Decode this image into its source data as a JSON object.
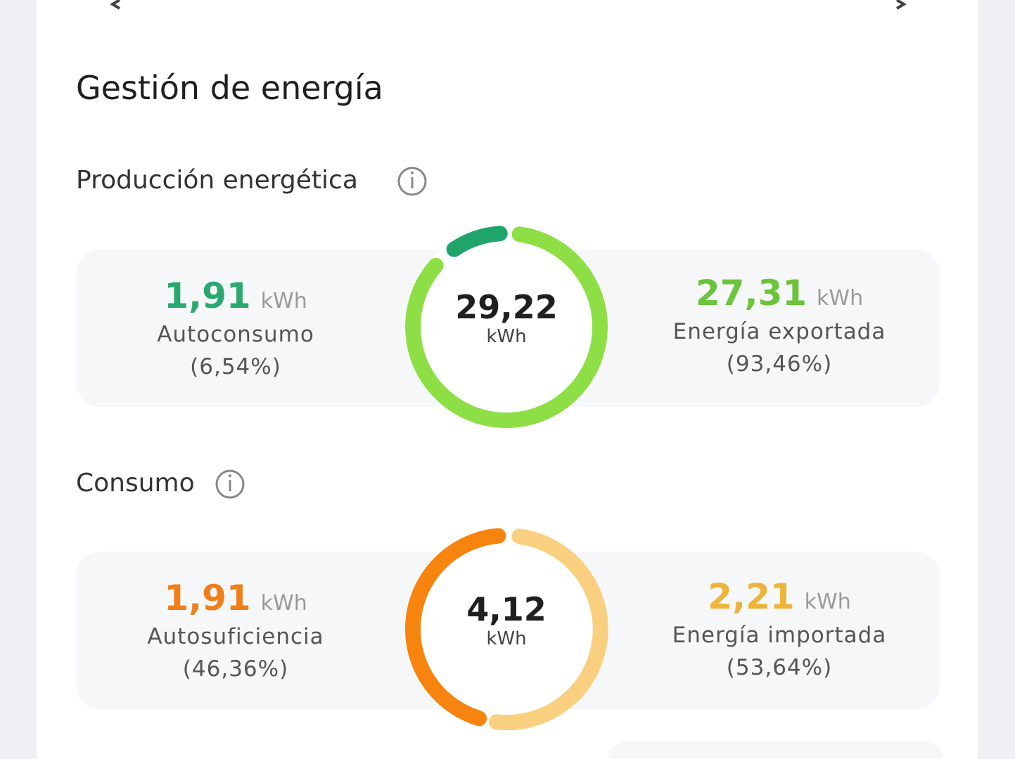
{
  "header": {
    "title": "Gestión de energía"
  },
  "production": {
    "label": "Producción energética",
    "total": {
      "value": "29,22",
      "unit": "kWh"
    },
    "left": {
      "value": "1,91",
      "unit": "kWh",
      "label": "Autoconsumo",
      "share": "(6,54%)"
    },
    "right": {
      "value": "27,31",
      "unit": "kWh",
      "label": "Energía exportada",
      "share": "(93,46%)"
    }
  },
  "consumption": {
    "label": "Consumo",
    "total": {
      "value": "4,12",
      "unit": "kWh"
    },
    "left": {
      "value": "1,91",
      "unit": "kWh",
      "label": "Autosuficiencia",
      "share": "(46,36%)"
    },
    "right": {
      "value": "2,21",
      "unit": "kWh",
      "label": "Energía importada",
      "share": "(53,64%)"
    }
  }
}
